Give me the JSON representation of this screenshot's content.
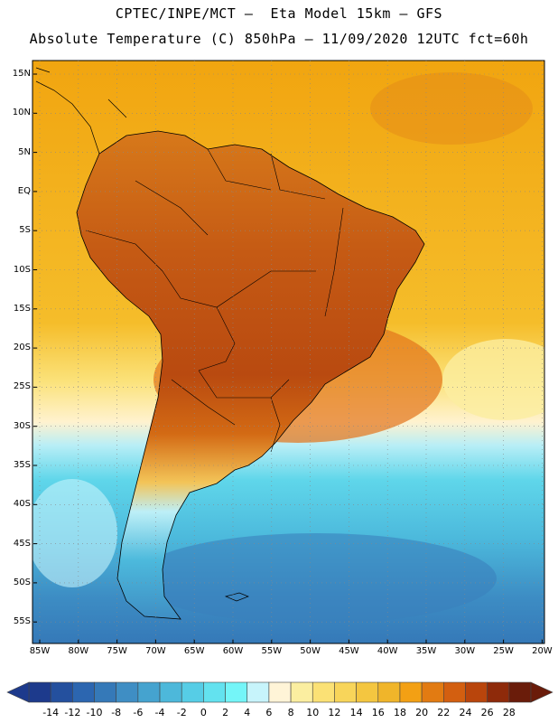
{
  "header": {
    "line1": "CPTEC/INPE/MCT –  Eta Model 15km – GFS",
    "line2": "Absolute Temperature (C) 850hPa – 11/09/2020 12UTC fct=60h"
  },
  "map": {
    "lat_labels": [
      "15N",
      "10N",
      "5N",
      "EQ",
      "5S",
      "10S",
      "15S",
      "20S",
      "25S",
      "30S",
      "35S",
      "40S",
      "45S",
      "50S",
      "55S"
    ],
    "lon_labels": [
      "85W",
      "80W",
      "75W",
      "70W",
      "65W",
      "60W",
      "55W",
      "50W",
      "45W",
      "40W",
      "35W",
      "30W",
      "25W",
      "20W"
    ],
    "ocean_color": "#f5b800",
    "land_color": "#c7601c"
  },
  "colorbar": {
    "labels": [
      "-14",
      "-12",
      "-10",
      "-8",
      "-6",
      "-4",
      "-2",
      "0",
      "2",
      "4",
      "6",
      "8",
      "10",
      "12",
      "14",
      "16",
      "18",
      "20",
      "22",
      "24",
      "26",
      "28"
    ],
    "colors": [
      "#1d3a8c",
      "#24509e",
      "#2c66b0",
      "#3579b8",
      "#3f8ec4",
      "#45a3cf",
      "#4db8da",
      "#56cde6",
      "#63e2ef",
      "#74f5f8",
      "#c7f4fb",
      "#fff4d7",
      "#fbeea0",
      "#fbe175",
      "#f8d55a",
      "#f4c640",
      "#f0b52a",
      "#f3a014",
      "#e27b12",
      "#d35f10",
      "#b9450c",
      "#8e2a0a",
      "#6a1c0a"
    ]
  }
}
